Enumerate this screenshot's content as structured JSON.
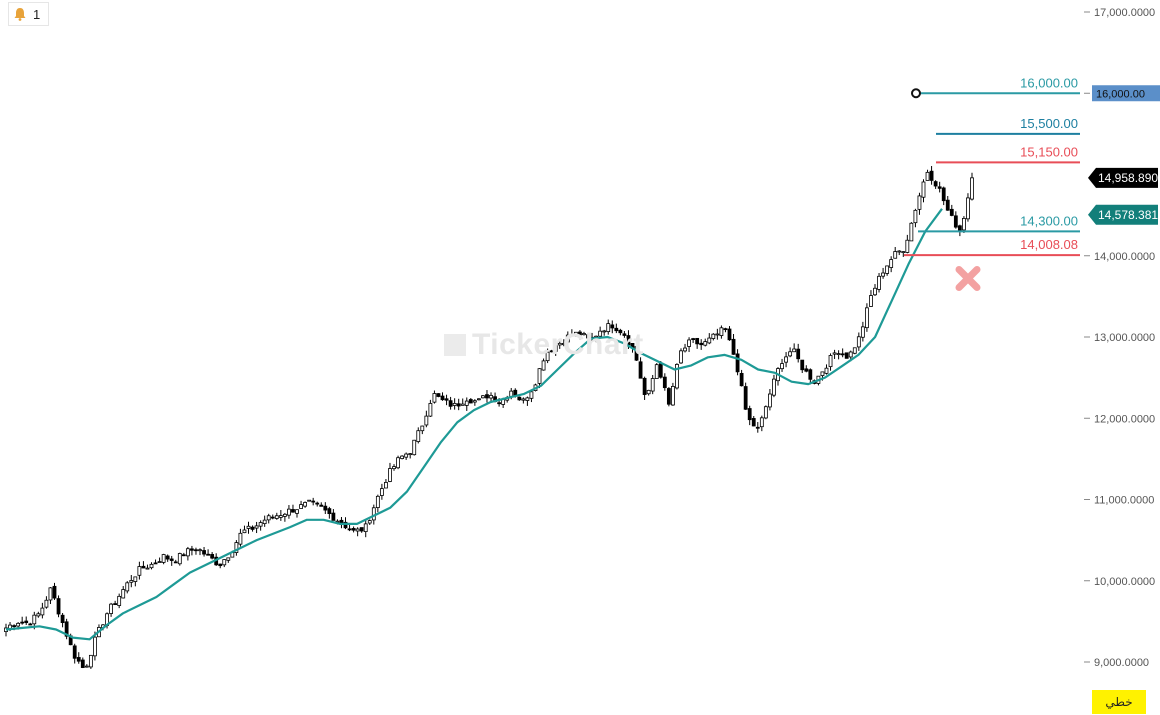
{
  "alert": {
    "count": "1",
    "icon": "bell-icon"
  },
  "scale_mode": "خطي",
  "watermark": "TickerChart",
  "chart_data": {
    "type": "candlestick",
    "ylim": [
      8700,
      17050
    ],
    "y_ticks": [
      {
        "value": 17000,
        "label": "17,000.0000"
      },
      {
        "value": 16000,
        "label": "16,000.0000"
      },
      {
        "value": 14000,
        "label": "14,000.0000"
      },
      {
        "value": 13000,
        "label": "13,000.0000"
      },
      {
        "value": 12000,
        "label": "12,000.0000"
      },
      {
        "value": 11000,
        "label": "11,000.0000"
      },
      {
        "value": 10000,
        "label": "10,000.0000"
      },
      {
        "value": 9000,
        "label": "9,000.0000"
      }
    ],
    "price_path": [
      9420,
      9500,
      9480,
      9600,
      9900,
      9500,
      9100,
      8900,
      9300,
      9600,
      9800,
      10000,
      10150,
      10200,
      10300,
      10250,
      10350,
      10400,
      10300,
      10200,
      10350,
      10600,
      10650,
      10750,
      10800,
      10850,
      10900,
      10950,
      10900,
      10800,
      10700,
      10600,
      10650,
      11000,
      11300,
      11500,
      11600,
      11900,
      12300,
      12200,
      12150,
      12250,
      12200,
      12300,
      12200,
      12350,
      12200,
      12400,
      12800,
      12900,
      13000,
      13050,
      12950,
      13100,
      13150,
      13050,
      12800,
      12200,
      12700,
      12150,
      12800,
      12950,
      12900,
      13000,
      13100,
      12700,
      12000,
      11850,
      12300,
      12700,
      12850,
      12600,
      12450,
      12650,
      12850,
      12750,
      13000,
      13500,
      13800,
      14000,
      14100,
      14600,
      15050,
      14850,
      14500,
      14300,
      14958.89
    ],
    "ma_path": [
      9400,
      9420,
      9440,
      9400,
      9300,
      9280,
      9450,
      9600,
      9700,
      9800,
      9950,
      10100,
      10200,
      10300,
      10400,
      10500,
      10580,
      10660,
      10750,
      10750,
      10700,
      10700,
      10800,
      10900,
      11100,
      11400,
      11700,
      11950,
      12100,
      12200,
      12250,
      12300,
      12400,
      12600,
      12800,
      12980,
      13000,
      12920,
      12800,
      12700,
      12600,
      12650,
      12750,
      12780,
      12720,
      12600,
      12560,
      12450,
      12420,
      12500,
      12640,
      12780,
      13000,
      13450,
      13900,
      14300,
      14578.38
    ],
    "horizontal_levels": [
      {
        "label": "16,000.00",
        "value": 16000,
        "color": "#2a9aa4",
        "axis_label": "16,000.00",
        "axis_color": "#5b8fc9"
      },
      {
        "label": "15,500.00",
        "value": 15500,
        "color": "#1d7fa0"
      },
      {
        "label": "15,150.00",
        "value": 15150,
        "color": "#e84d57"
      },
      {
        "label": "14,300.00",
        "value": 14300,
        "color": "#2a9aa4"
      },
      {
        "label": "14,008.08",
        "value": 14008.08,
        "color": "#e84d57"
      }
    ],
    "last_price": {
      "value": 14958.89,
      "label": "14,958.8900",
      "color": "#000000"
    },
    "ma_value": {
      "value": 14578.3816,
      "label": "14,578.3816",
      "color": "#127f7a"
    },
    "colors": {
      "up": "#ffffff",
      "down": "#000000",
      "wick": "#000000",
      "ma": "#1e9a96"
    }
  }
}
